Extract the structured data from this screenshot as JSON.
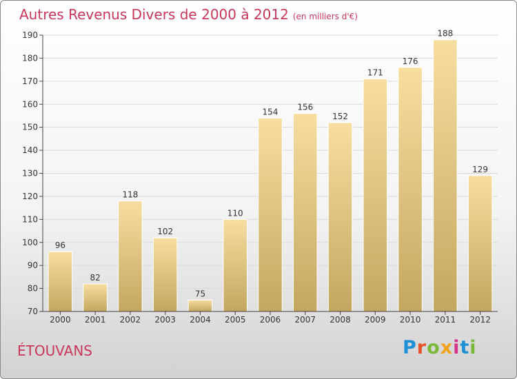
{
  "title": "Autres Revenus Divers de 2000 à 2012",
  "unit": "(en milliers d'€)",
  "town": "ÉTOUVANS",
  "brand": {
    "name": "Proxiti",
    "letters": [
      "P",
      "r",
      "o",
      "x",
      "i",
      "t",
      "i"
    ],
    "colors": [
      "#1f8fd6",
      "#e8542a",
      "#7ab83a",
      "#f2a31b",
      "#d6338b",
      "#1f8fd6",
      "#7ab83a"
    ]
  },
  "colors": {
    "accent": "#c8375a",
    "bar_top": "#f7dea0",
    "bar_bottom": "#c3a760",
    "axis": "#444444",
    "grid": "#d8d8d8"
  },
  "chart_data": {
    "type": "bar",
    "categories": [
      "2000",
      "2001",
      "2002",
      "2003",
      "2004",
      "2005",
      "2006",
      "2007",
      "2008",
      "2009",
      "2010",
      "2011",
      "2012"
    ],
    "values": [
      96,
      82,
      118,
      102,
      75,
      110,
      154,
      156,
      152,
      171,
      176,
      188,
      129
    ],
    "title": "Autres Revenus Divers de 2000 à 2012",
    "xlabel": "",
    "ylabel": "",
    "ylim": [
      70,
      190
    ],
    "yticks": [
      70,
      80,
      90,
      100,
      110,
      120,
      130,
      140,
      150,
      160,
      170,
      180,
      190
    ],
    "grid": true,
    "data_labels": true
  }
}
